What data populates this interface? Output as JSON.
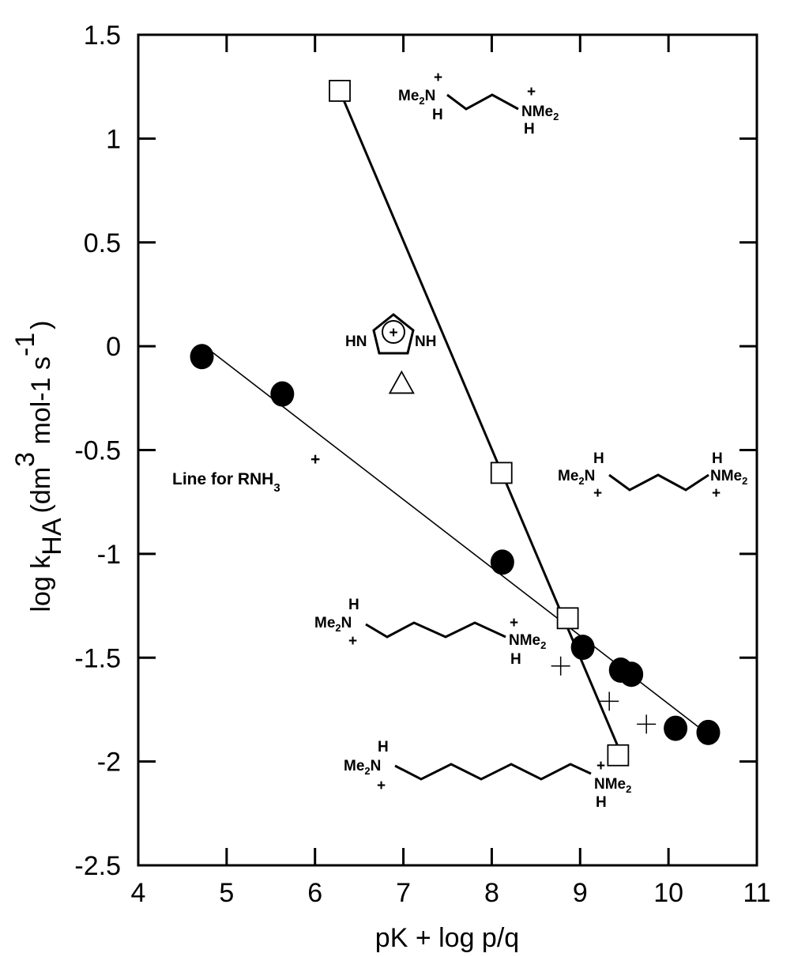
{
  "chart_data": {
    "type": "scatter",
    "xlabel": "pK + log p/q",
    "ylabel_main": "log k",
    "ylabel_sub": "HA",
    "ylabel_units": "(dm",
    "ylabel_exp3": "3",
    "ylabel_units2": " mol-1 s",
    "ylabel_expm1": "-1",
    "ylabel_close": ")",
    "xlim": [
      4,
      11
    ],
    "ylim": [
      -2.5,
      1.5
    ],
    "x_ticks": [
      {
        "v": 4,
        "label": "4"
      },
      {
        "v": 5,
        "label": "5"
      },
      {
        "v": 6,
        "label": "6"
      },
      {
        "v": 7,
        "label": "7"
      },
      {
        "v": 8,
        "label": "8"
      },
      {
        "v": 9,
        "label": "9"
      },
      {
        "v": 10,
        "label": "10"
      },
      {
        "v": 11,
        "label": "11"
      }
    ],
    "y_ticks": [
      {
        "v": -2.5,
        "label": "-2.5"
      },
      {
        "v": -2,
        "label": "-2"
      },
      {
        "v": -1.5,
        "label": "-1.5"
      },
      {
        "v": -1,
        "label": "-1"
      },
      {
        "v": -0.5,
        "label": "-0.5"
      },
      {
        "v": 0,
        "label": "0"
      },
      {
        "v": 0.5,
        "label": "0.5"
      },
      {
        "v": 1,
        "label": "1"
      },
      {
        "v": 1.5,
        "label": "1.5"
      }
    ],
    "grid": false,
    "series": [
      {
        "marker": "filled-circle",
        "points": [
          {
            "x": 4.72,
            "y": -0.05
          },
          {
            "x": 5.63,
            "y": -0.23
          },
          {
            "x": 8.12,
            "y": -1.04
          },
          {
            "x": 9.03,
            "y": -1.45
          },
          {
            "x": 9.46,
            "y": -1.56
          },
          {
            "x": 9.58,
            "y": -1.58
          },
          {
            "x": 10.08,
            "y": -1.84
          },
          {
            "x": 10.45,
            "y": -1.86
          }
        ]
      },
      {
        "marker": "open-square",
        "points": [
          {
            "x": 6.28,
            "y": 1.23
          },
          {
            "x": 8.11,
            "y": -0.61
          },
          {
            "x": 8.86,
            "y": -1.31
          },
          {
            "x": 9.43,
            "y": -1.97
          }
        ]
      },
      {
        "marker": "open-triangle",
        "points": [
          {
            "x": 6.98,
            "y": -0.18
          }
        ]
      },
      {
        "marker": "plus",
        "points": [
          {
            "x": 8.78,
            "y": -1.54
          },
          {
            "x": 9.33,
            "y": -1.71
          },
          {
            "x": 9.75,
            "y": -1.82
          }
        ]
      }
    ],
    "lines": [
      {
        "name": "rnh3-line",
        "x1": 4.75,
        "y1": 0.0,
        "x2": 10.45,
        "y2": -1.87,
        "weight": "thin"
      },
      {
        "name": "square-line",
        "x1": 6.28,
        "y1": 1.23,
        "x2": 9.43,
        "y2": -1.93,
        "weight": "thick"
      }
    ],
    "annotations": {
      "rnh3_line_label": {
        "text": "Line for RNH",
        "sub": "3",
        "sup": "+"
      },
      "diamine2": {
        "me2n": "Me",
        "me2n_sub": "2",
        "me2n_n": "N",
        "plus": "+",
        "h": "H",
        "nme2": "NMe",
        "nme2_sub": "2"
      },
      "imidazolium": {
        "hn": "HN",
        "nh": "NH",
        "plus": "+"
      },
      "diamine3": {
        "me2n": "Me",
        "me2n_sub": "2",
        "me2n_n": "N",
        "plus": "+",
        "h": "H",
        "nme2": "NMe",
        "nme2_sub": "2"
      },
      "diamine4": {
        "me2n": "Me",
        "me2n_sub": "2",
        "me2n_n": "N",
        "plus": "+",
        "h": "H",
        "nme2": "NMe",
        "nme2_sub": "2"
      },
      "diamine6": {
        "me2n": "Me",
        "me2n_sub": "2",
        "me2n_n": "N",
        "plus": "+",
        "h": "H",
        "nme2": "NMe",
        "nme2_sub": "2"
      }
    }
  }
}
